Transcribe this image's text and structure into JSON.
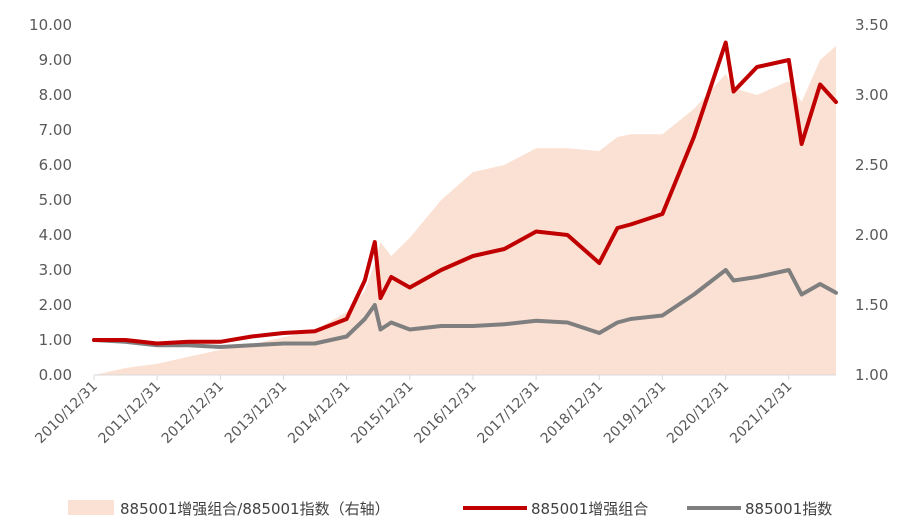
{
  "chart_data": {
    "type": "line",
    "title": "",
    "xlabel": "",
    "ylabel": "",
    "x_ticks": [
      "2010/12/31",
      "2011/12/31",
      "2012/12/31",
      "2013/12/31",
      "2014/12/31",
      "2015/12/31",
      "2016/12/31",
      "2017/12/31",
      "2018/12/31",
      "2019/12/31",
      "2020/12/31",
      "2021/12/31"
    ],
    "ylim_left": [
      0,
      10
    ],
    "yticks_left": [
      "0.00",
      "1.00",
      "2.00",
      "3.00",
      "4.00",
      "5.00",
      "6.00",
      "7.00",
      "8.00",
      "9.00",
      "10.00"
    ],
    "ylim_right": [
      1.0,
      3.5
    ],
    "yticks_right": [
      "1.00",
      "1.50",
      "2.00",
      "2.50",
      "3.00",
      "3.50"
    ],
    "legend_position": "bottom",
    "grid": false,
    "x": [
      "2010-12-31",
      "2011-06-30",
      "2011-12-31",
      "2012-06-30",
      "2012-12-31",
      "2013-06-30",
      "2013-12-31",
      "2014-06-30",
      "2014-12-31",
      "2015-04-15",
      "2015-06-12",
      "2015-07-15",
      "2015-09-15",
      "2015-12-31",
      "2016-06-30",
      "2016-12-31",
      "2017-06-30",
      "2017-12-31",
      "2018-06-30",
      "2018-12-31",
      "2019-04-15",
      "2019-06-30",
      "2019-12-31",
      "2020-06-30",
      "2020-12-31",
      "2021-02-15",
      "2021-06-30",
      "2021-12-31",
      "2022-03-15",
      "2022-06-30",
      "2022-09-30"
    ],
    "series": [
      {
        "name": "885001增强组合/885001指数（右轴）",
        "type": "area",
        "axis": "right",
        "color": "#FBE1D3",
        "values": [
          1.0,
          1.05,
          1.08,
          1.13,
          1.18,
          1.22,
          1.27,
          1.32,
          1.45,
          1.6,
          1.8,
          1.95,
          1.85,
          1.98,
          2.25,
          2.45,
          2.5,
          2.62,
          2.62,
          2.6,
          2.7,
          2.72,
          2.72,
          2.9,
          3.15,
          3.05,
          3.0,
          3.1,
          2.95,
          3.25,
          3.35
        ]
      },
      {
        "name": "885001增强组合",
        "type": "line",
        "axis": "left",
        "color": "#C00000",
        "values": [
          1.0,
          1.0,
          0.9,
          0.95,
          0.95,
          1.1,
          1.2,
          1.25,
          1.6,
          2.7,
          3.8,
          2.2,
          2.8,
          2.5,
          3.0,
          3.4,
          3.6,
          4.1,
          4.0,
          3.2,
          4.2,
          4.3,
          4.6,
          6.8,
          9.5,
          8.1,
          8.8,
          9.0,
          6.6,
          8.3,
          7.8
        ]
      },
      {
        "name": "885001指数",
        "type": "line",
        "axis": "left",
        "color": "#7F7F7F",
        "values": [
          1.0,
          0.95,
          0.85,
          0.85,
          0.8,
          0.85,
          0.9,
          0.9,
          1.1,
          1.6,
          2.0,
          1.3,
          1.5,
          1.3,
          1.4,
          1.4,
          1.45,
          1.55,
          1.5,
          1.2,
          1.5,
          1.6,
          1.7,
          2.3,
          3.0,
          2.7,
          2.8,
          3.0,
          2.3,
          2.6,
          2.35
        ]
      }
    ]
  }
}
